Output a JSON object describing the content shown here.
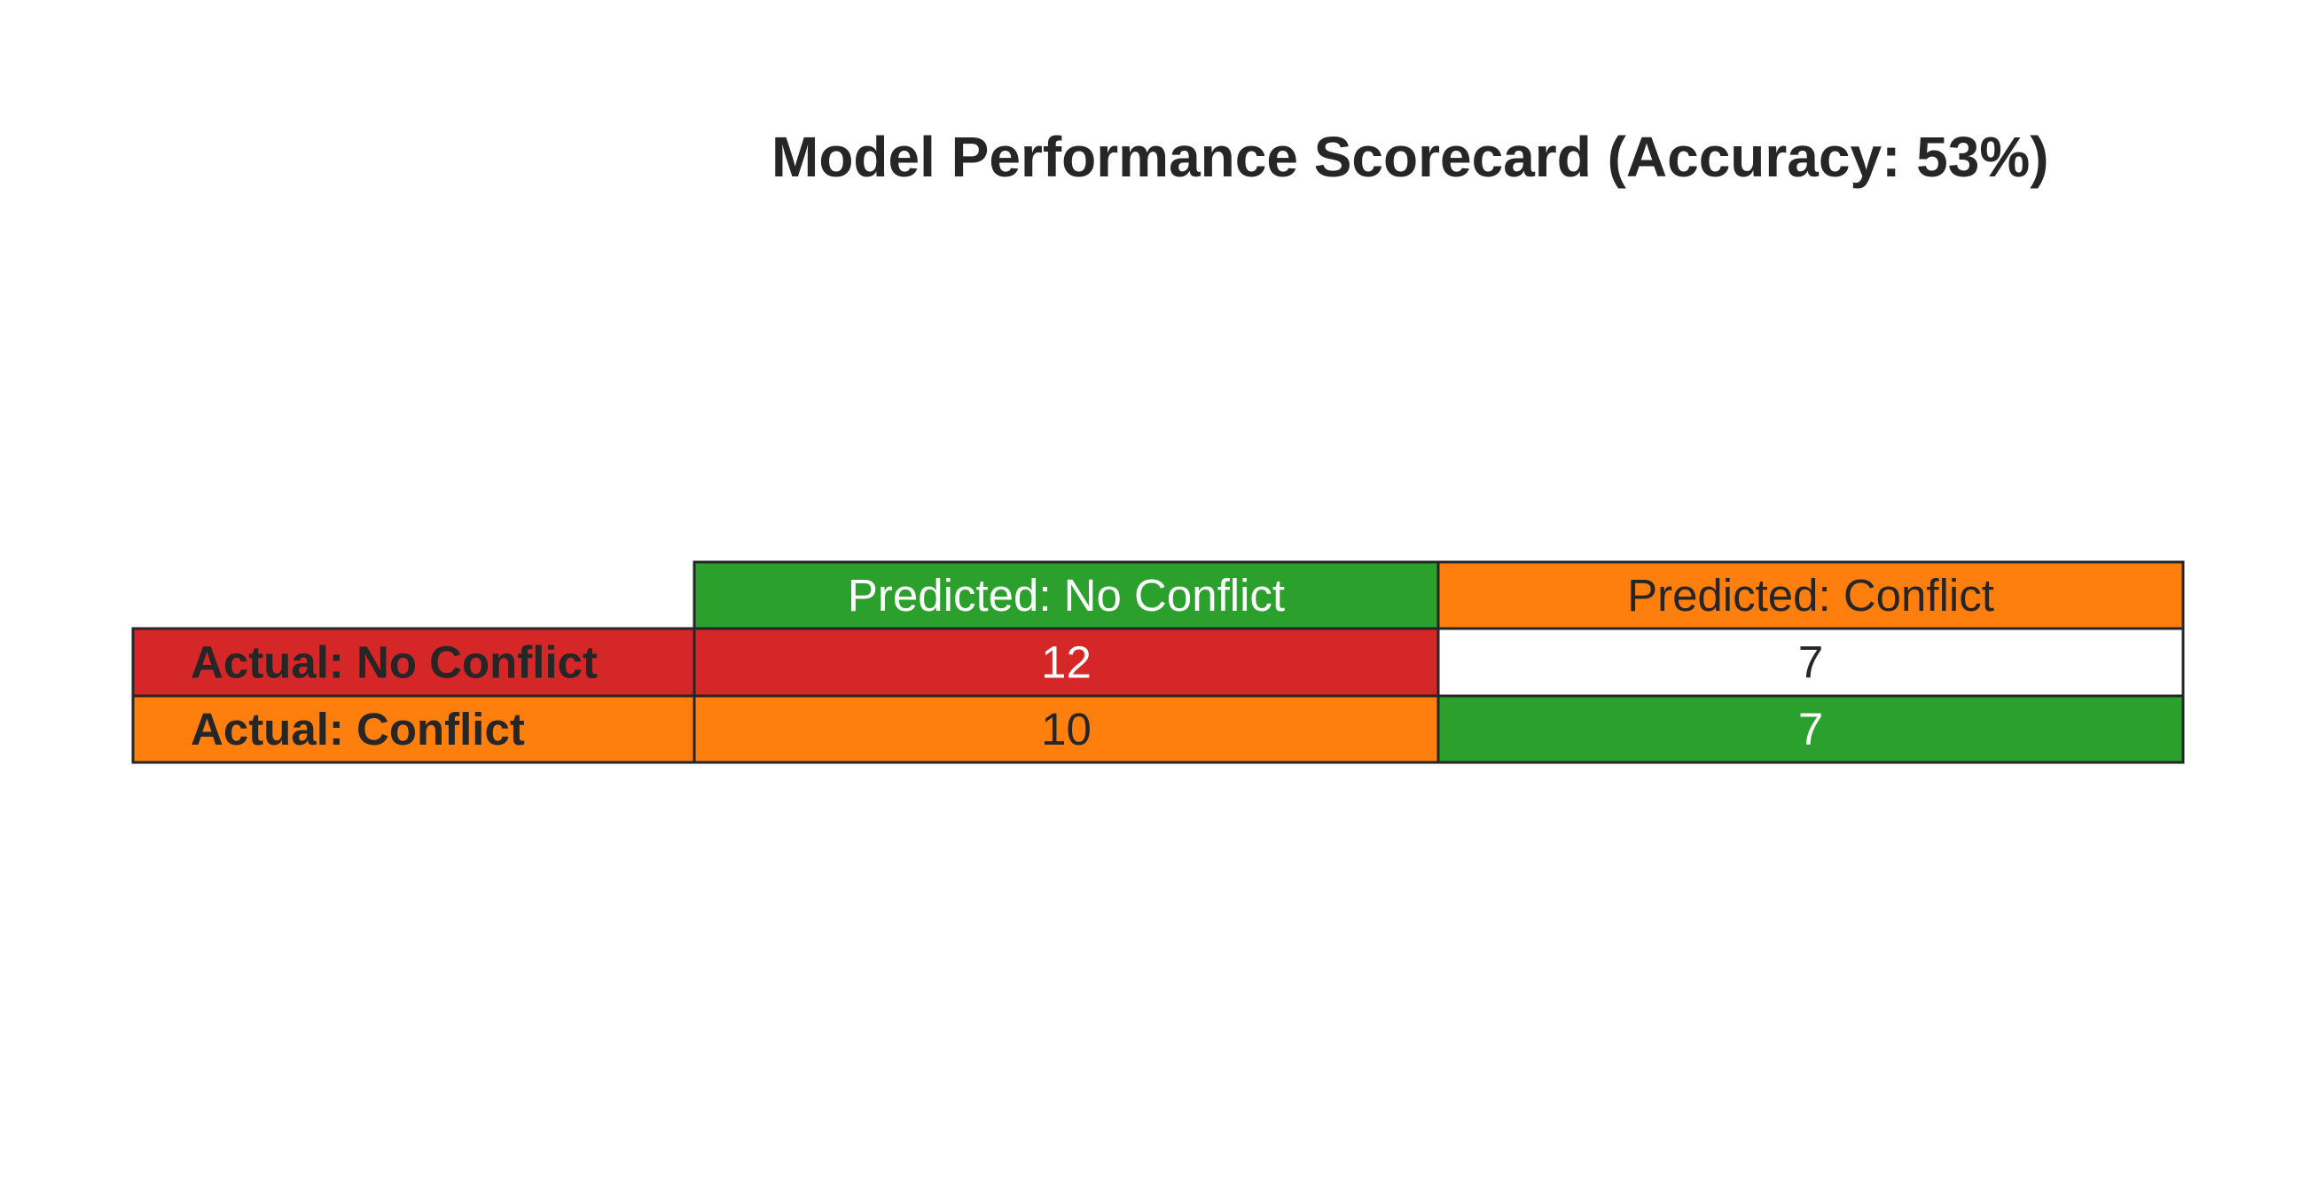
{
  "chart_data": {
    "type": "table",
    "title": "Model Performance Scorecard (Accuracy: 53%)",
    "columns": [
      "Predicted: No Conflict",
      "Predicted: Conflict"
    ],
    "rows": [
      {
        "label": "Actual: No Conflict",
        "values": [
          "12",
          "7"
        ]
      },
      {
        "label": "Actual: Conflict",
        "values": [
          "10",
          "7"
        ]
      }
    ],
    "colors": {
      "header": [
        "#2ca02c",
        "#ff7f0e"
      ],
      "header_text": [
        "#ffffff",
        "#262626"
      ],
      "row_label": [
        "#d62728",
        "#ff7f0e"
      ],
      "cells": [
        [
          "#d62728",
          "#ffffff"
        ],
        [
          "#ff7f0e",
          "#2ca02c"
        ]
      ],
      "cell_text": [
        [
          "#ffffff",
          "#262626"
        ],
        [
          "#262626",
          "#ffffff"
        ]
      ],
      "row_label_text": "#262626",
      "border": "#262626"
    }
  }
}
